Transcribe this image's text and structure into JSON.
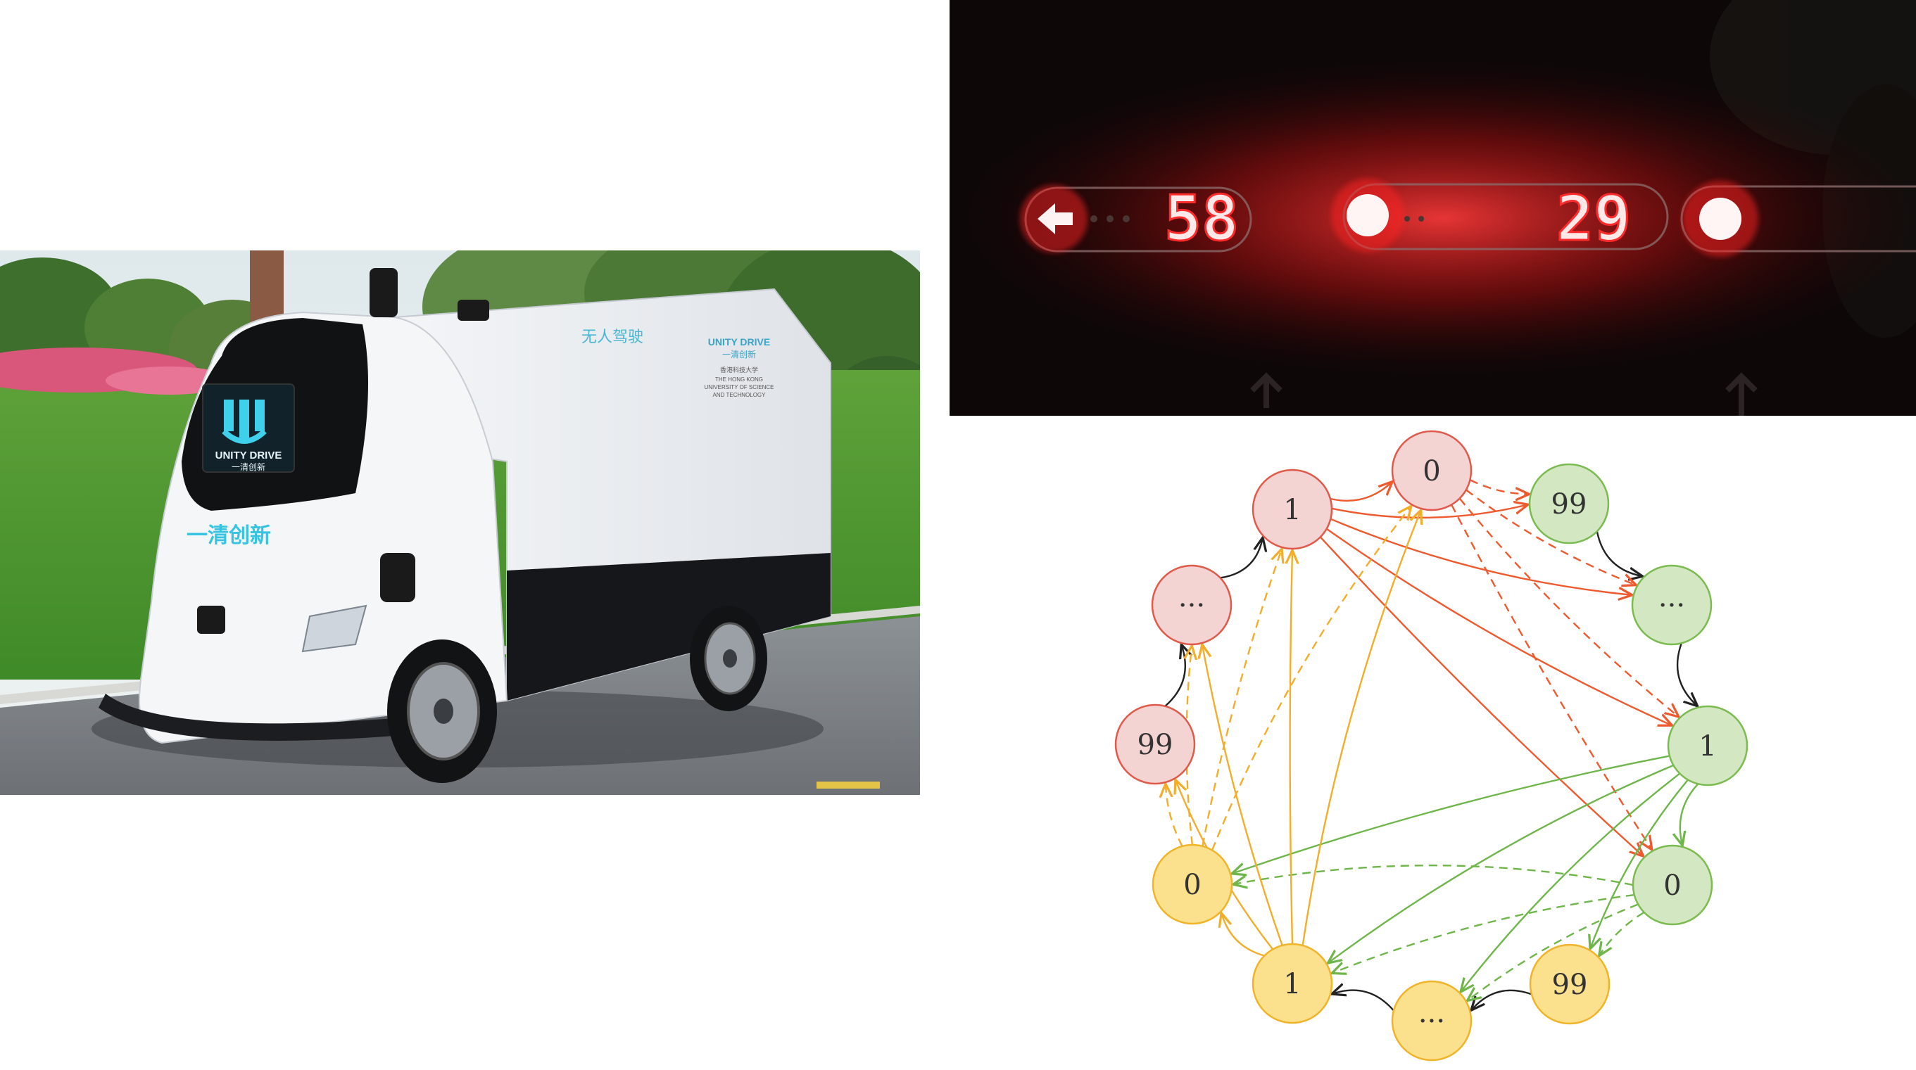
{
  "vehicle_photo": {
    "front_screen_brand": "UNITY DRIVE",
    "front_screen_chinese": "一清创新",
    "front_bumper_text": "一清创新",
    "side_title": "无人驾驶",
    "side_brand_en": "UNITY DRIVE",
    "side_brand_cn": "一清创新",
    "side_university_cn": "香港科技大学",
    "side_university_en_1": "THE HONG KONG",
    "side_university_en_2": "UNIVERSITY OF SCIENCE",
    "side_university_en_3": "AND TECHNOLOGY"
  },
  "traffic_lights": {
    "left_arrow_icon": "arrow-left-icon",
    "countdown_1": "58",
    "countdown_2": "29",
    "color": "#ff1a1a"
  },
  "state_diagram": {
    "nodes": [
      {
        "id": "r1",
        "label": "1",
        "group": "red"
      },
      {
        "id": "r0",
        "label": "0",
        "group": "red"
      },
      {
        "id": "g99",
        "label": "99",
        "group": "green"
      },
      {
        "id": "gdots",
        "label": "···",
        "group": "green"
      },
      {
        "id": "g1",
        "label": "1",
        "group": "green"
      },
      {
        "id": "g0",
        "label": "0",
        "group": "green"
      },
      {
        "id": "y99",
        "label": "99",
        "group": "yellow"
      },
      {
        "id": "ydots",
        "label": "···",
        "group": "yellow"
      },
      {
        "id": "y1",
        "label": "1",
        "group": "yellow"
      },
      {
        "id": "y0",
        "label": "0",
        "group": "yellow"
      },
      {
        "id": "r99",
        "label": "99",
        "group": "red"
      },
      {
        "id": "rdots",
        "label": "···",
        "group": "red"
      }
    ],
    "colors": {
      "red_fill": "#f4d3d3",
      "red_stroke": "#e05a4a",
      "red_edge": "#ee5a2e",
      "green_fill": "#d3e8c2",
      "green_stroke": "#7bbb4f",
      "green_edge": "#6fb64a",
      "yellow_fill": "#fbe18e",
      "yellow_stroke": "#f0b42a",
      "yellow_edge": "#f2ad2a",
      "cycle_edge": "#222222"
    }
  }
}
